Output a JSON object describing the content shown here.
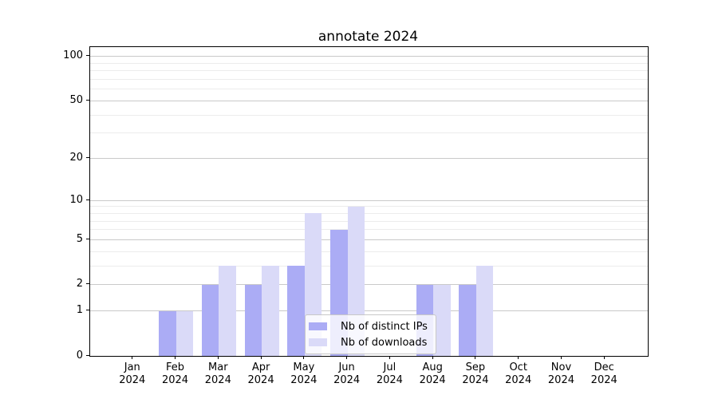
{
  "chart_data": {
    "type": "bar",
    "title": "annotate 2024",
    "categories": [
      "Jan",
      "Feb",
      "Mar",
      "Apr",
      "May",
      "Jun",
      "Jul",
      "Aug",
      "Sep",
      "Oct",
      "Nov",
      "Dec"
    ],
    "year": "2024",
    "series": [
      {
        "name": "Nb of distinct IPs",
        "color": "#abacf5",
        "values": [
          0,
          1,
          2,
          2,
          3,
          6,
          0,
          2,
          2,
          0,
          0,
          0
        ]
      },
      {
        "name": "Nb of downloads",
        "color": "#dadaf8",
        "values": [
          0,
          1,
          3,
          3,
          8,
          9,
          0,
          2,
          3,
          0,
          0,
          0
        ]
      }
    ],
    "yscale": "log1p",
    "ylim": [
      0,
      116
    ],
    "y_major_ticks": [
      0,
      1,
      2,
      5,
      10,
      20,
      50,
      100
    ],
    "y_minor_ticks": [
      3,
      4,
      6,
      7,
      8,
      9,
      30,
      40,
      60,
      70,
      80,
      90
    ],
    "grid": true,
    "legend_position": "inside bottom-center",
    "colors": {
      "spine": "#000000",
      "grid_major": "#c9c9c9",
      "grid_minor": "#ececec",
      "background": "#ffffff"
    }
  }
}
